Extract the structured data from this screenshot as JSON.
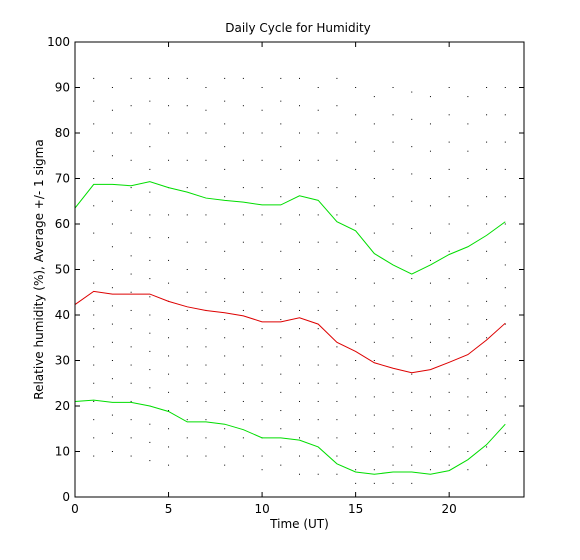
{
  "chart_data": {
    "type": "line",
    "title": "Daily Cycle for Humidity",
    "xlabel": "Time (UT)",
    "ylabel": "Relative humidity (%), Average +/- 1 sigma",
    "xlim": [
      0,
      24
    ],
    "ylim": [
      0,
      100
    ],
    "x_ticks": [
      0,
      5,
      10,
      15,
      20
    ],
    "y_ticks": [
      0,
      10,
      20,
      30,
      40,
      50,
      60,
      70,
      80,
      90,
      100
    ],
    "grid": false,
    "x": [
      0,
      1,
      2,
      3,
      4,
      5,
      6,
      7,
      8,
      9,
      10,
      11,
      12,
      13,
      14,
      15,
      16,
      17,
      18,
      19,
      20,
      21,
      22,
      23
    ],
    "series": [
      {
        "role": "plus-one-sigma",
        "color": "#00dd00",
        "values": [
          63.5,
          68.7,
          68.7,
          68.4,
          69.3,
          68.0,
          67.0,
          65.7,
          65.2,
          64.8,
          64.2,
          64.2,
          66.2,
          65.2,
          60.5,
          58.5,
          53.5,
          51.0,
          49.0,
          51.0,
          53.3,
          55.0,
          57.5,
          60.5
        ]
      },
      {
        "role": "average",
        "color": "#dd0000",
        "values": [
          42.3,
          45.2,
          44.6,
          44.6,
          44.6,
          43.0,
          41.8,
          41.0,
          40.5,
          39.8,
          38.5,
          38.5,
          39.4,
          38.0,
          34.0,
          32.0,
          29.5,
          28.3,
          27.3,
          28.0,
          29.6,
          31.3,
          34.5,
          38.2
        ]
      },
      {
        "role": "minus-one-sigma",
        "color": "#00dd00",
        "values": [
          21.0,
          21.3,
          20.8,
          20.8,
          20.0,
          18.8,
          16.5,
          16.5,
          16.0,
          14.8,
          13.0,
          13.0,
          12.5,
          11.0,
          7.3,
          5.5,
          5.0,
          5.5,
          5.5,
          5.0,
          5.8,
          8.2,
          11.5,
          16.0
        ]
      }
    ],
    "scatter_points": [
      {
        "x": 0,
        "values": [
          92,
          86,
          80,
          74,
          68,
          62,
          56,
          50,
          44,
          38,
          32,
          26,
          20,
          14,
          8
        ]
      },
      {
        "x": 1,
        "values": [
          92,
          87,
          82,
          76,
          70,
          64,
          58,
          52,
          47,
          43,
          40,
          37,
          33,
          29,
          25,
          21,
          17,
          13,
          9
        ]
      },
      {
        "x": 2,
        "values": [
          90,
          85,
          80,
          75,
          70,
          65,
          60,
          55,
          50,
          46,
          42,
          38,
          34,
          30,
          26,
          22,
          18,
          14,
          10
        ]
      },
      {
        "x": 3,
        "values": [
          92,
          86,
          80,
          74,
          68,
          63,
          58,
          53,
          49,
          45,
          41,
          37,
          33,
          29,
          25,
          21,
          17,
          13,
          9
        ]
      },
      {
        "x": 4,
        "values": [
          92,
          87,
          82,
          77,
          72,
          67,
          62,
          57,
          52,
          48,
          44,
          40,
          36,
          32,
          28,
          24,
          20,
          16,
          12,
          8
        ]
      },
      {
        "x": 5,
        "values": [
          92,
          86,
          80,
          74,
          68,
          62,
          57,
          52,
          47,
          43,
          39,
          35,
          31,
          27,
          23,
          19,
          15,
          11,
          7
        ]
      },
      {
        "x": 6,
        "values": [
          92,
          86,
          80,
          74,
          68,
          62,
          56,
          50,
          45,
          41,
          37,
          33,
          29,
          25,
          21,
          17,
          13,
          9
        ]
      },
      {
        "x": 7,
        "values": [
          90,
          85,
          80,
          74,
          68,
          62,
          56,
          50,
          45,
          41,
          37,
          33,
          29,
          25,
          21,
          17,
          13,
          9
        ]
      },
      {
        "x": 8,
        "values": [
          92,
          87,
          82,
          77,
          72,
          66,
          60,
          54,
          48,
          43,
          39,
          35,
          31,
          27,
          23,
          19,
          15,
          11,
          7
        ]
      },
      {
        "x": 9,
        "values": [
          92,
          86,
          80,
          74,
          68,
          62,
          56,
          50,
          45,
          41,
          37,
          33,
          29,
          25,
          21,
          17,
          13,
          9
        ]
      },
      {
        "x": 10,
        "values": [
          90,
          85,
          80,
          74,
          68,
          62,
          56,
          50,
          45,
          41,
          37,
          33,
          29,
          25,
          21,
          17,
          13,
          9,
          6
        ]
      },
      {
        "x": 11,
        "values": [
          92,
          87,
          82,
          77,
          72,
          66,
          60,
          54,
          48,
          43,
          39,
          35,
          31,
          27,
          23,
          19,
          15,
          11,
          7
        ]
      },
      {
        "x": 12,
        "values": [
          92,
          86,
          80,
          74,
          68,
          62,
          56,
          50,
          45,
          41,
          37,
          33,
          29,
          25,
          21,
          17,
          13,
          9,
          5
        ]
      },
      {
        "x": 13,
        "values": [
          90,
          85,
          80,
          74,
          68,
          62,
          56,
          50,
          45,
          41,
          37,
          33,
          29,
          25,
          21,
          17,
          13,
          9,
          5
        ]
      },
      {
        "x": 14,
        "values": [
          92,
          86,
          80,
          74,
          68,
          62,
          56,
          50,
          45,
          41,
          37,
          33,
          29,
          25,
          21,
          17,
          13,
          9,
          5
        ]
      },
      {
        "x": 15,
        "values": [
          90,
          84,
          78,
          72,
          66,
          60,
          54,
          48,
          42,
          38,
          34,
          30,
          26,
          22,
          18,
          14,
          10,
          6,
          3
        ]
      },
      {
        "x": 16,
        "values": [
          88,
          82,
          76,
          70,
          64,
          58,
          52,
          47,
          42,
          38,
          34,
          30,
          26,
          22,
          18,
          14,
          10,
          6,
          3
        ]
      },
      {
        "x": 17,
        "values": [
          90,
          84,
          78,
          72,
          66,
          60,
          54,
          48,
          43,
          39,
          35,
          31,
          27,
          23,
          19,
          15,
          11,
          7,
          3
        ]
      },
      {
        "x": 18,
        "values": [
          89,
          83,
          77,
          71,
          65,
          59,
          53,
          48,
          43,
          39,
          35,
          31,
          27,
          23,
          19,
          15,
          11,
          7,
          3
        ]
      },
      {
        "x": 19,
        "values": [
          88,
          82,
          76,
          70,
          64,
          58,
          52,
          47,
          42,
          38,
          34,
          30,
          26,
          22,
          18,
          14,
          10,
          6
        ]
      },
      {
        "x": 20,
        "values": [
          90,
          84,
          78,
          72,
          66,
          60,
          54,
          48,
          43,
          39,
          35,
          31,
          27,
          23,
          19,
          15,
          11,
          7
        ]
      },
      {
        "x": 21,
        "values": [
          88,
          82,
          76,
          70,
          64,
          58,
          52,
          47,
          42,
          38,
          34,
          30,
          26,
          22,
          18,
          14,
          10,
          6
        ]
      },
      {
        "x": 22,
        "values": [
          90,
          84,
          78,
          72,
          66,
          60,
          54,
          48,
          43,
          39,
          35,
          31,
          27,
          23,
          19,
          15,
          11,
          7
        ]
      },
      {
        "x": 23,
        "values": [
          90,
          84,
          78,
          72,
          66,
          60,
          56,
          51,
          46,
          42,
          38,
          34,
          30,
          26,
          22,
          18,
          14,
          10
        ]
      }
    ]
  }
}
